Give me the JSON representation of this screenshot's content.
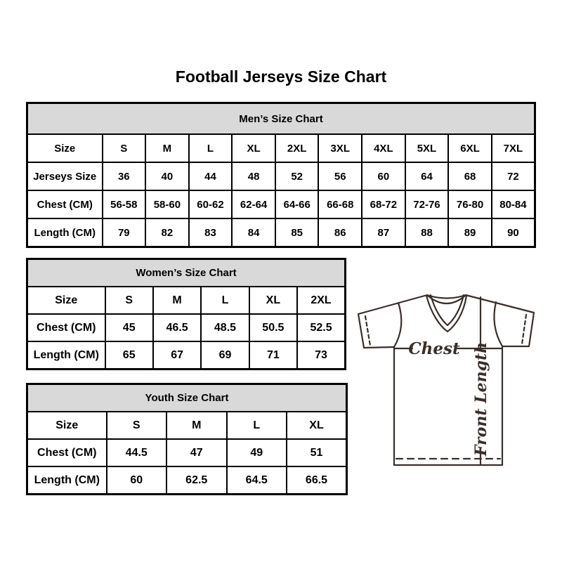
{
  "page_title": "Football Jerseys Size Chart",
  "chart_data": [
    {
      "type": "table",
      "title": "Men’s Size Chart",
      "columns": [
        "Size",
        "S",
        "M",
        "L",
        "XL",
        "2XL",
        "3XL",
        "4XL",
        "5XL",
        "6XL",
        "7XL"
      ],
      "rows": [
        [
          "Jerseys Size",
          "36",
          "40",
          "44",
          "48",
          "52",
          "56",
          "60",
          "64",
          "68",
          "72"
        ],
        [
          "Chest (CM)",
          "56-58",
          "58-60",
          "60-62",
          "62-64",
          "64-66",
          "66-68",
          "68-72",
          "72-76",
          "76-80",
          "80-84"
        ],
        [
          "Length (CM)",
          "79",
          "82",
          "83",
          "84",
          "85",
          "86",
          "87",
          "88",
          "89",
          "90"
        ]
      ]
    },
    {
      "type": "table",
      "title": "Women’s Size Chart",
      "columns": [
        "Size",
        "S",
        "M",
        "L",
        "XL",
        "2XL"
      ],
      "rows": [
        [
          "Chest (CM)",
          "45",
          "46.5",
          "48.5",
          "50.5",
          "52.5"
        ],
        [
          "Length (CM)",
          "65",
          "67",
          "69",
          "71",
          "73"
        ]
      ]
    },
    {
      "type": "table",
      "title": "Youth Size Chart",
      "columns": [
        "Size",
        "S",
        "M",
        "L",
        "XL"
      ],
      "rows": [
        [
          "Chest (CM)",
          "44.5",
          "47",
          "49",
          "51"
        ],
        [
          "Length (CM)",
          "60",
          "62.5",
          "64.5",
          "66.5"
        ]
      ]
    }
  ],
  "diagram": {
    "chest_label": "Chest",
    "front_length_label": "Front Length"
  },
  "colors": {
    "table_header_bg": "#d9d9d9",
    "table_border": "#000000",
    "text": "#000000",
    "diagram_stroke": "#3a2e28"
  }
}
